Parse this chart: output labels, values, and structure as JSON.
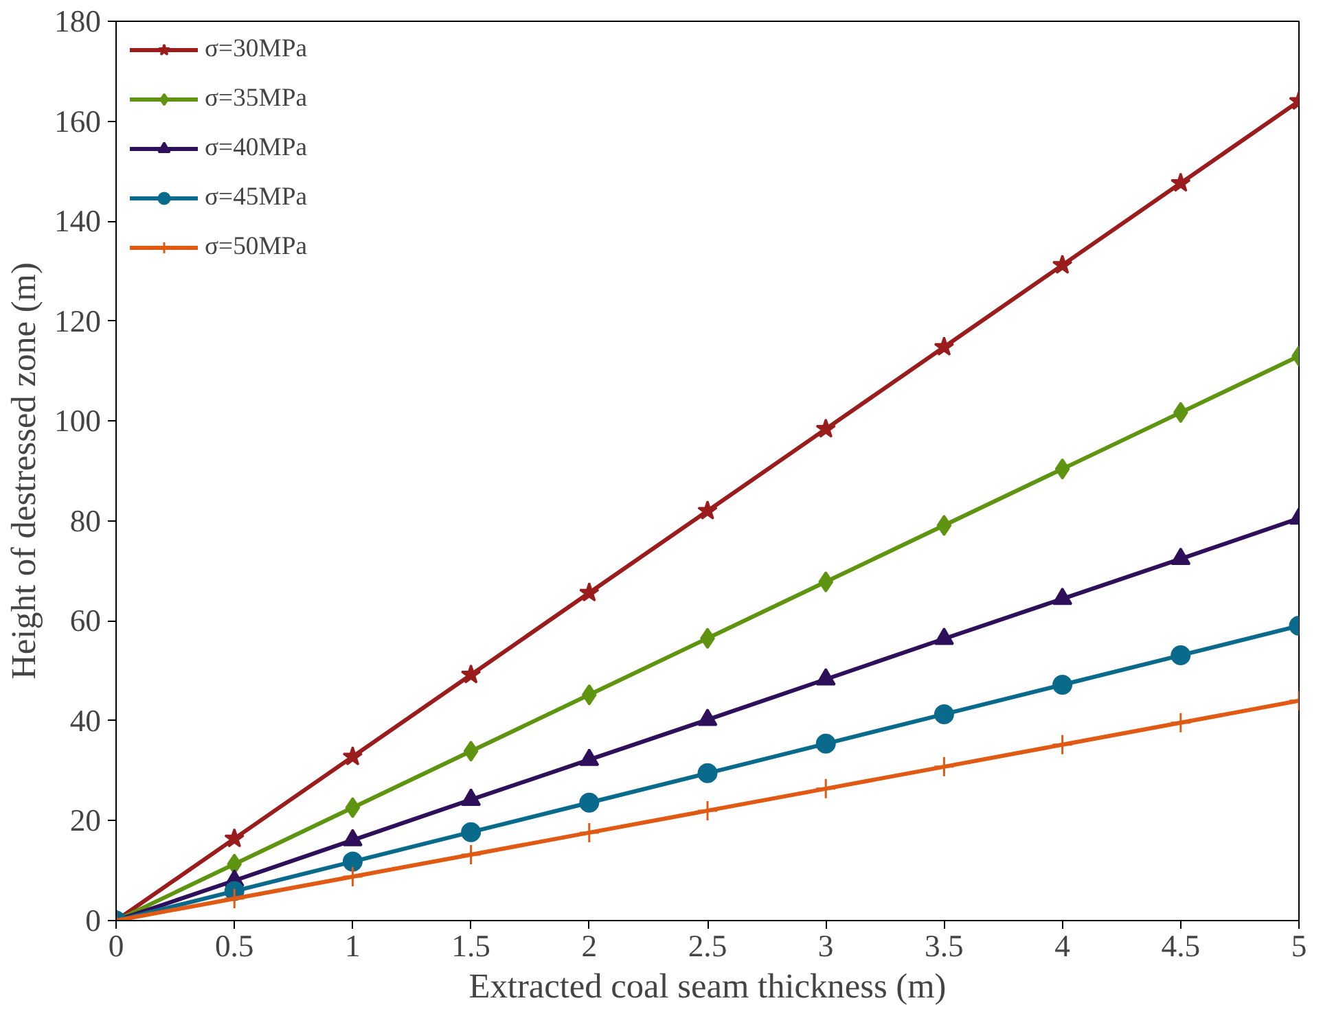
{
  "chart_data": {
    "type": "line",
    "xlabel": "Extracted coal seam thickness (m)",
    "ylabel": "Height of destressed zone (m)",
    "x": [
      0,
      0.5,
      1,
      1.5,
      2,
      2.5,
      3,
      3.5,
      4,
      4.5,
      5
    ],
    "series": [
      {
        "name": "σ=30MPa",
        "color": "#9b1c1c",
        "marker": "star",
        "values": [
          0,
          16.4,
          32.8,
          49.2,
          65.6,
          82,
          98.4,
          114.8,
          131.2,
          147.6,
          164
        ]
      },
      {
        "name": "σ=35MPa",
        "color": "#5f9410",
        "marker": "diamond",
        "values": [
          0,
          11.3,
          22.6,
          33.9,
          45.2,
          56.5,
          67.8,
          79.1,
          90.4,
          101.7,
          113
        ]
      },
      {
        "name": "σ=40MPa",
        "color": "#2d0f5a",
        "marker": "triangle",
        "values": [
          0,
          8,
          16.1,
          24.2,
          32.2,
          40.2,
          48.3,
          56.4,
          64.4,
          72.4,
          80.5
        ]
      },
      {
        "name": "σ=45MPa",
        "color": "#0a6a8c",
        "marker": "circle",
        "values": [
          0,
          5.9,
          11.8,
          17.7,
          23.6,
          29.5,
          35.4,
          41.3,
          47.2,
          53.1,
          59
        ]
      },
      {
        "name": "σ=50MPa",
        "color": "#e05a14",
        "marker": "cross",
        "values": [
          0,
          4.4,
          8.8,
          13.2,
          17.6,
          22,
          26.4,
          30.8,
          35.2,
          39.6,
          44
        ]
      }
    ],
    "xlim": [
      0,
      5
    ],
    "xticks": [
      0,
      0.5,
      1,
      1.5,
      2,
      2.5,
      3,
      3.5,
      4,
      4.5,
      5
    ],
    "ylim": [
      0,
      180
    ],
    "yticks": [
      0,
      20,
      40,
      60,
      80,
      100,
      120,
      140,
      160,
      180
    ],
    "grid": false,
    "legend": "top left",
    "line_style": "solid"
  }
}
